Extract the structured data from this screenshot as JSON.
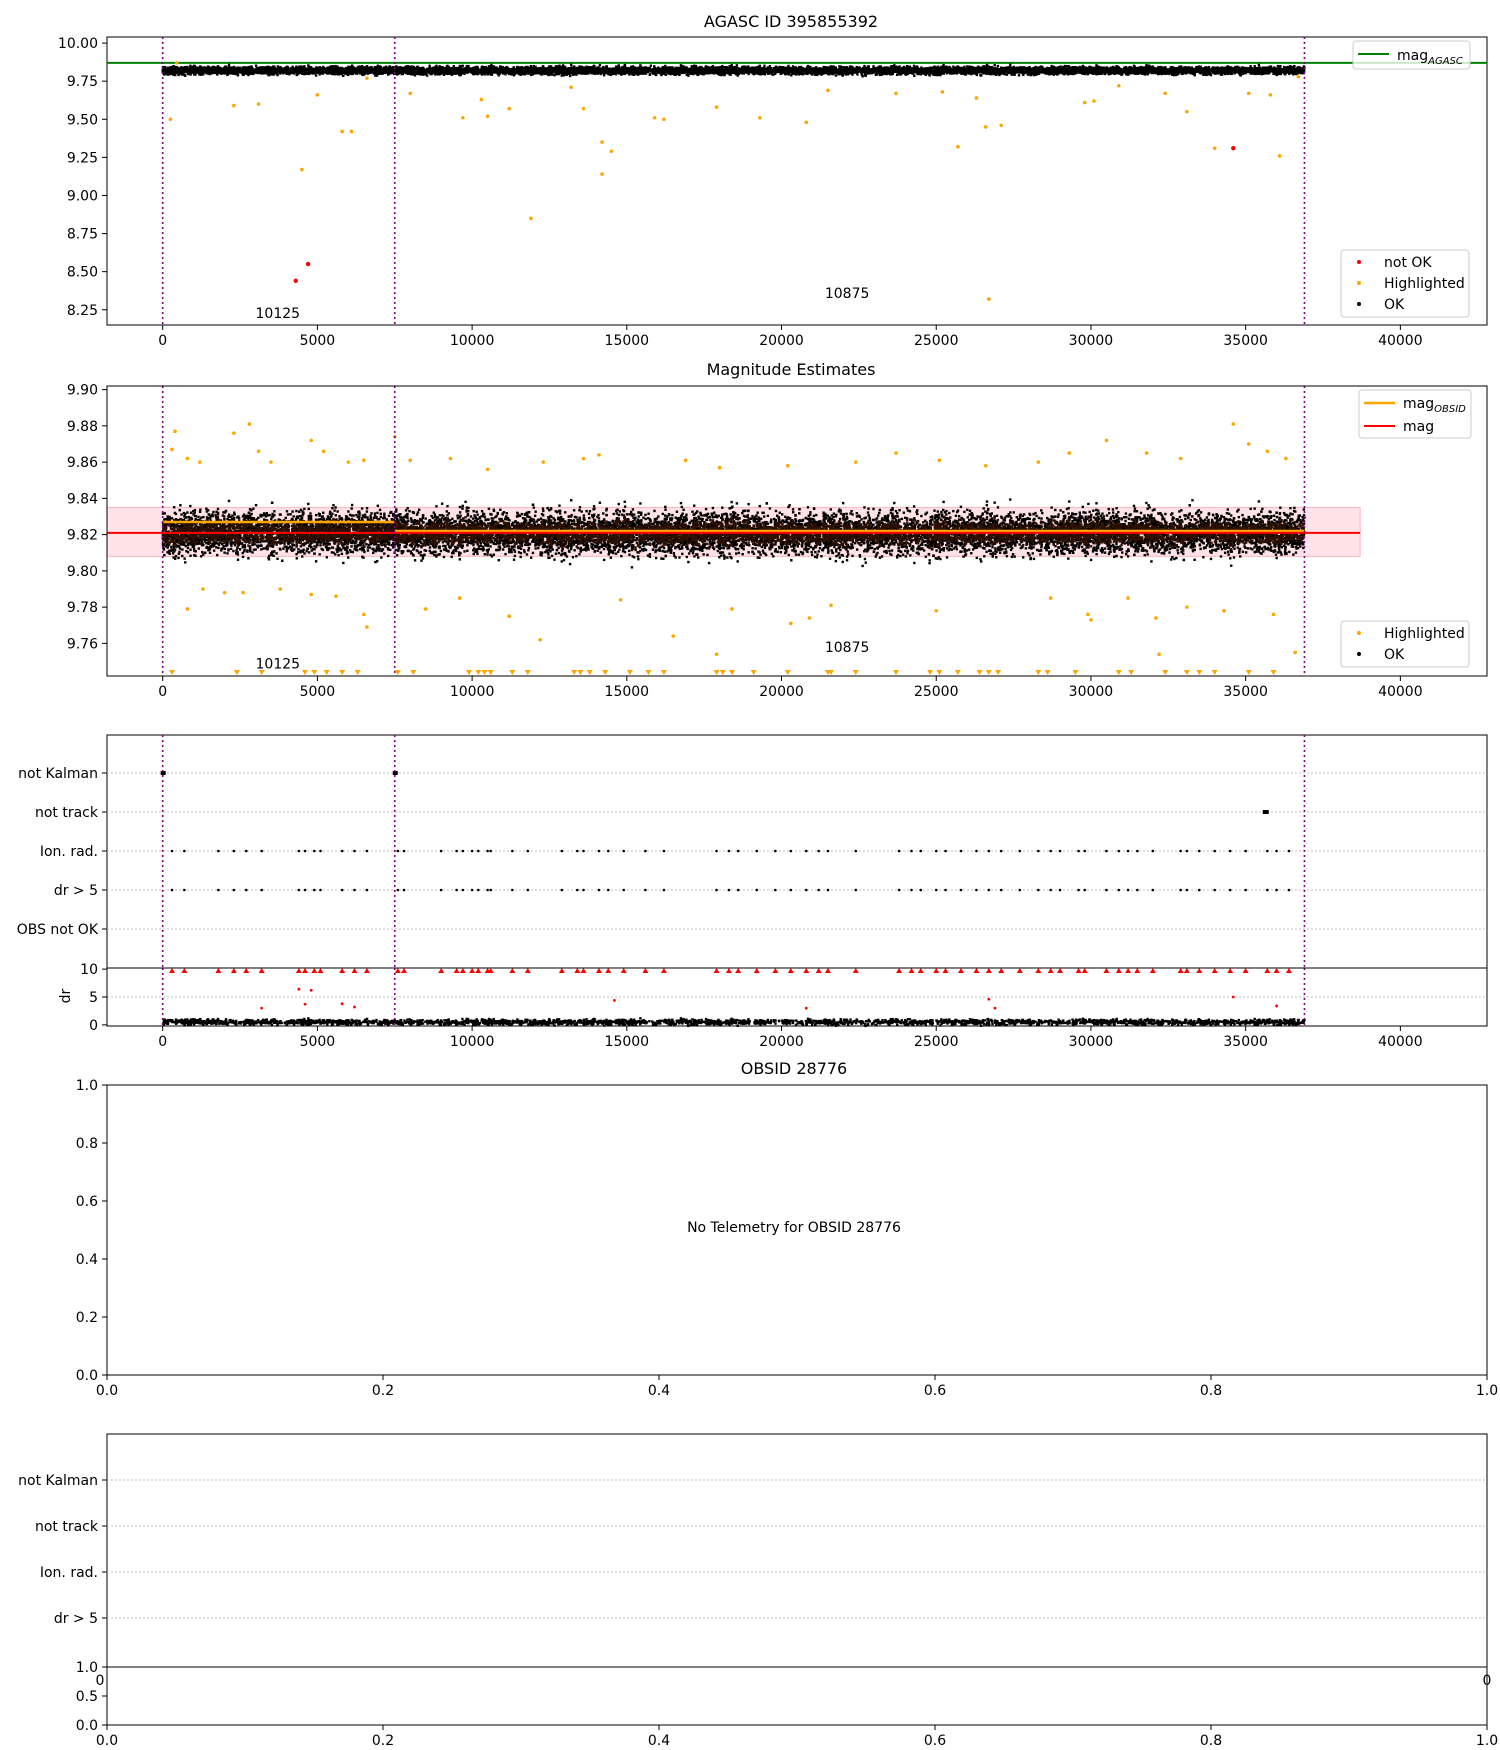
{
  "chart_data": [
    {
      "id": "mag-agasc",
      "type": "scatter",
      "title": "AGASC ID 395855392",
      "xlabel": "",
      "ylabel": "",
      "xlim": [
        -1800,
        42800
      ],
      "ylim": [
        8.15,
        10.04
      ],
      "xticks": [
        0,
        5000,
        10000,
        15000,
        20000,
        25000,
        30000,
        35000,
        40000
      ],
      "yticks": [
        8.25,
        8.5,
        8.75,
        9.0,
        9.25,
        9.5,
        9.75,
        10.0
      ],
      "ytick_labels": [
        "8.25",
        "8.50",
        "8.75",
        "9.00",
        "9.25",
        "9.50",
        "9.75",
        "10.00"
      ],
      "legend_upper": {
        "position": "top-right",
        "entries": [
          "mag_AGASC"
        ]
      },
      "legend_lower": {
        "position": "bottom-right",
        "entries": [
          "not OK",
          "Highlighted",
          "OK"
        ]
      },
      "lines": [
        {
          "name": "mag_AGASC",
          "y": 9.87,
          "color": "#008000"
        }
      ],
      "vlines": [
        0,
        7500,
        36900
      ],
      "annotations": [
        {
          "text": "10125",
          "x": 3000,
          "y": 8.23
        },
        {
          "text": "10875",
          "x": 21400,
          "y": 8.36
        }
      ],
      "band": {
        "x": [
          0,
          36900
        ],
        "y_center": 9.82,
        "y_half": 0.025,
        "density": 9000
      },
      "highlighted": [
        [
          250,
          9.5
        ],
        [
          450,
          9.87
        ],
        [
          2300,
          9.59
        ],
        [
          3100,
          9.6
        ],
        [
          4500,
          9.17
        ],
        [
          5000,
          9.66
        ],
        [
          5800,
          9.42
        ],
        [
          6100,
          9.42
        ],
        [
          6600,
          9.77
        ],
        [
          8000,
          9.67
        ],
        [
          9700,
          9.51
        ],
        [
          10300,
          9.63
        ],
        [
          10500,
          9.52
        ],
        [
          11200,
          9.57
        ],
        [
          11900,
          8.85
        ],
        [
          13200,
          9.71
        ],
        [
          13600,
          9.57
        ],
        [
          14200,
          9.14
        ],
        [
          14200,
          9.35
        ],
        [
          14500,
          9.29
        ],
        [
          15900,
          9.51
        ],
        [
          16200,
          9.5
        ],
        [
          17900,
          9.58
        ],
        [
          19300,
          9.51
        ],
        [
          20800,
          9.48
        ],
        [
          21500,
          9.69
        ],
        [
          23700,
          9.67
        ],
        [
          25200,
          9.68
        ],
        [
          25700,
          9.32
        ],
        [
          26300,
          9.64
        ],
        [
          26600,
          9.45
        ],
        [
          26700,
          8.32
        ],
        [
          27100,
          9.46
        ],
        [
          29800,
          9.61
        ],
        [
          30100,
          9.62
        ],
        [
          30900,
          9.72
        ],
        [
          32400,
          9.67
        ],
        [
          33100,
          9.55
        ],
        [
          34000,
          9.31
        ],
        [
          35100,
          9.67
        ],
        [
          35800,
          9.66
        ],
        [
          36100,
          9.26
        ],
        [
          36700,
          9.78
        ]
      ],
      "not_ok": [
        [
          4300,
          8.44
        ],
        [
          4700,
          8.55
        ],
        [
          34600,
          9.31
        ]
      ],
      "colors": {
        "ok": "#000000",
        "highlighted": "#ffa500",
        "not_ok": "#ff0000",
        "vline": "#800080"
      }
    },
    {
      "id": "mag-estimates",
      "type": "scatter",
      "title": "Magnitude Estimates",
      "xlabel": "",
      "ylabel": "",
      "xlim": [
        -1800,
        42800
      ],
      "ylim": [
        9.742,
        9.902
      ],
      "xticks": [
        0,
        5000,
        10000,
        15000,
        20000,
        25000,
        30000,
        35000,
        40000
      ],
      "yticks": [
        9.76,
        9.78,
        9.8,
        9.82,
        9.84,
        9.86,
        9.88,
        9.9
      ],
      "ytick_labels": [
        "9.76",
        "9.78",
        "9.80",
        "9.82",
        "9.84",
        "9.86",
        "9.88",
        "9.90"
      ],
      "legend_upper": {
        "position": "top-right",
        "entries": [
          "mag_OBSID",
          "mag"
        ]
      },
      "legend_lower": {
        "position": "bottom-right",
        "entries": [
          "Highlighted",
          "OK"
        ]
      },
      "mag_line": {
        "y": 9.821,
        "x": [
          -1800,
          38700
        ],
        "color": "#ff0000"
      },
      "mag_band": {
        "x": [
          -1800,
          38700
        ],
        "y": [
          9.808,
          9.835
        ],
        "color": "#ffc0cb"
      },
      "obsid_lines": [
        {
          "x": [
            0,
            7500
          ],
          "y": 9.827
        },
        {
          "x": [
            7500,
            36900
          ],
          "y": 9.822
        }
      ],
      "vlines": [
        0,
        7500,
        36900
      ],
      "annotations": [
        {
          "text": "10125",
          "x": 3000,
          "y": 9.749
        },
        {
          "text": "10875",
          "x": 21400,
          "y": 9.758
        }
      ],
      "band": {
        "x": [
          0,
          36900
        ],
        "y_center": 9.821,
        "y_half": 0.012,
        "density": 11000
      },
      "highlighted": [
        [
          300,
          9.867
        ],
        [
          400,
          9.877
        ],
        [
          800,
          9.862
        ],
        [
          1200,
          9.86
        ],
        [
          2300,
          9.876
        ],
        [
          2800,
          9.881
        ],
        [
          3100,
          9.866
        ],
        [
          3500,
          9.86
        ],
        [
          4800,
          9.872
        ],
        [
          5200,
          9.866
        ],
        [
          6000,
          9.86
        ],
        [
          6500,
          9.861
        ],
        [
          7500,
          9.874
        ],
        [
          8000,
          9.861
        ],
        [
          9300,
          9.862
        ],
        [
          10500,
          9.856
        ],
        [
          12300,
          9.86
        ],
        [
          13600,
          9.862
        ],
        [
          14100,
          9.864
        ],
        [
          16900,
          9.861
        ],
        [
          18000,
          9.857
        ],
        [
          20200,
          9.858
        ],
        [
          22400,
          9.86
        ],
        [
          23700,
          9.865
        ],
        [
          25100,
          9.861
        ],
        [
          26600,
          9.858
        ],
        [
          28300,
          9.86
        ],
        [
          29300,
          9.865
        ],
        [
          30500,
          9.872
        ],
        [
          31800,
          9.865
        ],
        [
          32900,
          9.862
        ],
        [
          34600,
          9.881
        ],
        [
          35100,
          9.87
        ],
        [
          35700,
          9.866
        ],
        [
          36300,
          9.862
        ],
        [
          800,
          9.779
        ],
        [
          1300,
          9.79
        ],
        [
          2000,
          9.788
        ],
        [
          2600,
          9.788
        ],
        [
          3800,
          9.79
        ],
        [
          4800,
          9.787
        ],
        [
          5600,
          9.786
        ],
        [
          6500,
          9.776
        ],
        [
          6600,
          9.769
        ],
        [
          8500,
          9.779
        ],
        [
          9600,
          9.785
        ],
        [
          11200,
          9.775
        ],
        [
          12200,
          9.762
        ],
        [
          14800,
          9.784
        ],
        [
          16500,
          9.764
        ],
        [
          17900,
          9.754
        ],
        [
          18400,
          9.779
        ],
        [
          20300,
          9.771
        ],
        [
          20900,
          9.774
        ],
        [
          21600,
          9.781
        ],
        [
          25000,
          9.778
        ],
        [
          28700,
          9.785
        ],
        [
          29900,
          9.776
        ],
        [
          30000,
          9.773
        ],
        [
          31200,
          9.785
        ],
        [
          32100,
          9.774
        ],
        [
          32200,
          9.754
        ],
        [
          33100,
          9.78
        ],
        [
          34300,
          9.778
        ],
        [
          35900,
          9.776
        ],
        [
          36600,
          9.755
        ]
      ],
      "clipped_low_x": [
        300,
        2400,
        3200,
        4600,
        4900,
        5300,
        5800,
        6300,
        7600,
        8100,
        9900,
        10200,
        10400,
        10600,
        11300,
        11800,
        13300,
        13500,
        13800,
        14300,
        15100,
        15700,
        16200,
        17900,
        18100,
        18400,
        19100,
        20200,
        21500,
        21600,
        22400,
        23700,
        24800,
        25100,
        25700,
        26400,
        26700,
        27000,
        28300,
        28600,
        29500,
        30900,
        31300,
        32400,
        33100,
        33500,
        34000,
        35100,
        35900
      ],
      "colors": {
        "ok": "#000000",
        "highlighted": "#ffa500",
        "mag_obsid": "#ffa500",
        "mag": "#ff0000",
        "band_core": "#2e1000",
        "vline": "#800080"
      }
    },
    {
      "id": "flags-1",
      "type": "scatter",
      "title": "",
      "xlim": [
        -1800,
        42800
      ],
      "categories": [
        "not Kalman",
        "not track",
        "Ion. rad.",
        "dr > 5",
        "OBS not OK"
      ],
      "vlines": [
        0,
        7500,
        36900
      ],
      "not_kalman_x": [
        0,
        7500
      ],
      "not_track_x": [
        35650
      ],
      "flag_x": [
        300,
        700,
        1800,
        2300,
        2700,
        3200,
        4400,
        4600,
        4900,
        5100,
        5800,
        6200,
        6600,
        7600,
        7800,
        9000,
        9500,
        9700,
        10000,
        10200,
        10500,
        10600,
        11300,
        11800,
        12900,
        13400,
        13600,
        14100,
        14400,
        14900,
        15600,
        16200,
        17900,
        18300,
        18600,
        19200,
        19800,
        20300,
        20800,
        21200,
        21500,
        22400,
        23800,
        24200,
        24500,
        25000,
        25300,
        25800,
        26300,
        26700,
        27100,
        27700,
        28300,
        28700,
        29000,
        29600,
        29800,
        30500,
        30900,
        31200,
        31500,
        32000,
        32900,
        33100,
        33500,
        34000,
        34500,
        35000,
        35700,
        36000,
        36400
      ],
      "colors": {
        "ok": "#000000",
        "vline": "#800080",
        "grid": "#c0c0c0"
      }
    },
    {
      "id": "dr-1",
      "type": "scatter",
      "title": "",
      "xlabel": "",
      "ylabel": "dr",
      "xlim": [
        -1800,
        42800
      ],
      "ylim": [
        -0.2,
        10.2
      ],
      "xticks": [
        0,
        5000,
        10000,
        15000,
        20000,
        25000,
        30000,
        35000,
        40000
      ],
      "yticks": [
        0,
        5,
        10
      ],
      "clipped_high_x": [
        300,
        700,
        1800,
        2300,
        2700,
        3200,
        4400,
        4600,
        4900,
        5100,
        5800,
        6200,
        6600,
        7600,
        7800,
        9000,
        9500,
        9700,
        10000,
        10200,
        10500,
        10600,
        11300,
        11800,
        12900,
        13400,
        13600,
        14100,
        14400,
        14900,
        15600,
        16200,
        17900,
        18300,
        18600,
        19200,
        19800,
        20300,
        20800,
        21200,
        21500,
        22400,
        23800,
        24200,
        24500,
        25000,
        25300,
        25800,
        26300,
        26700,
        27100,
        27700,
        28300,
        28700,
        29000,
        29600,
        29800,
        30500,
        30900,
        31200,
        31500,
        32000,
        32900,
        33100,
        33500,
        34000,
        34500,
        35000,
        35700,
        36000,
        36400
      ],
      "red_points": [
        [
          3200,
          3.0
        ],
        [
          4400,
          6.4
        ],
        [
          4600,
          3.7
        ],
        [
          4800,
          6.2
        ],
        [
          5800,
          3.8
        ],
        [
          6200,
          3.2
        ],
        [
          14600,
          4.4
        ],
        [
          20800,
          3.0
        ],
        [
          26700,
          4.6
        ],
        [
          26900,
          3.0
        ],
        [
          34600,
          5.0
        ],
        [
          36000,
          3.4
        ]
      ],
      "band": {
        "x": [
          0,
          36900
        ],
        "y_center": 0.5,
        "y_half": 0.5,
        "density": 2500
      },
      "vlines": [
        0,
        7500,
        36900
      ],
      "colors": {
        "ok": "#000000",
        "red": "#ff0000",
        "vline": "#800080"
      }
    },
    {
      "id": "obsid-panel",
      "type": "scatter",
      "title": "OBSID 28776",
      "message": "No Telemetry for OBSID 28776",
      "xlim": [
        0,
        1
      ],
      "ylim": [
        0,
        1
      ],
      "xticks": [
        0.0,
        0.2,
        0.4,
        0.6,
        0.8,
        1.0
      ],
      "yticks": [
        0.0,
        0.2,
        0.4,
        0.6,
        0.8,
        1.0
      ],
      "xtick_labels": [
        "0.0",
        "0.2",
        "0.4",
        "0.6",
        "0.8",
        "1.0"
      ],
      "ytick_labels": [
        "0.0",
        "0.2",
        "0.4",
        "0.6",
        "0.8",
        "1.0"
      ]
    },
    {
      "id": "flags-2",
      "type": "scatter",
      "title": "",
      "categories": [
        "not Kalman",
        "not track",
        "Ion. rad.",
        "dr > 5"
      ],
      "xtick_labels_partial": [
        "0",
        "0"
      ],
      "colors": {
        "grid": "#c0c0c0"
      }
    },
    {
      "id": "dr-2",
      "type": "scatter",
      "title": "",
      "xlim": [
        0,
        1
      ],
      "ylim": [
        0,
        1
      ],
      "xticks": [
        0.0,
        0.2,
        0.4,
        0.6,
        0.8,
        1.0
      ],
      "yticks": [
        0.0,
        0.5,
        1.0
      ],
      "xtick_labels": [
        "0.0",
        "0.2",
        "0.4",
        "0.6",
        "0.8",
        "1.0"
      ],
      "ytick_labels": [
        "0.0",
        "0.5",
        "1.0"
      ]
    }
  ],
  "legend_labels": {
    "mag_agasc_base": "mag",
    "mag_agasc_sub": "AGASC",
    "mag_obsid_base": "mag",
    "mag_obsid_sub": "OBSID",
    "mag": "mag",
    "not_ok": "not OK",
    "highlighted": "Highlighted",
    "ok": "OK"
  }
}
